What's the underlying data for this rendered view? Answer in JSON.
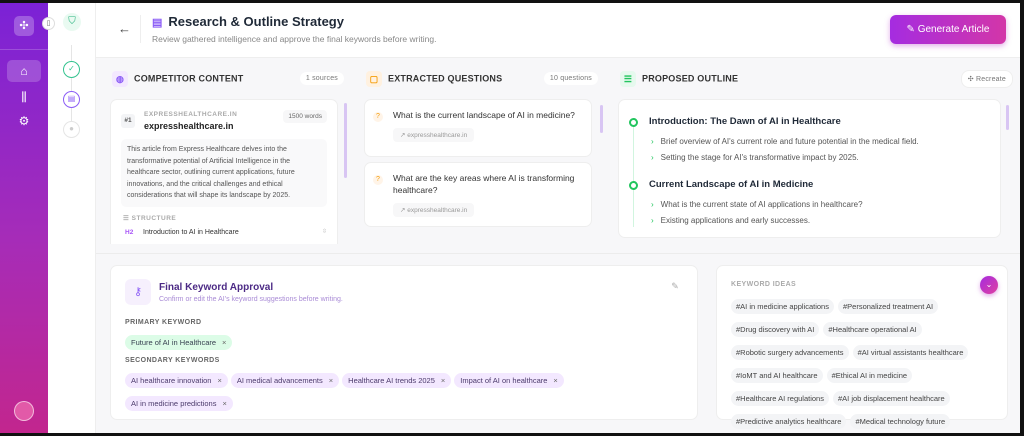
{
  "header": {
    "title": "Research & Outline Strategy",
    "subtitle": "Review gathered intelligence and approve the final keywords before writing.",
    "generate_label": "Generate Article"
  },
  "competitor": {
    "title": "COMPETITOR CONTENT",
    "badge": "1 sources",
    "rank": "#1",
    "domain_caps": "EXPRESSHEALTHCARE.IN",
    "domain": "expresshealthcare.in",
    "words": "1500 words",
    "summary": "This article from Express Healthcare delves into the transformative potential of Artificial Intelligence in the healthcare sector, outlining current applications, future innovations, and the critical challenges and ethical considerations that will shape its landscape by 2025.",
    "structure_label": "STRUCTURE",
    "structure_tag": "H2",
    "structure_item": "Introduction to AI in Healthcare"
  },
  "questions": {
    "title": "EXTRACTED QUESTIONS",
    "badge": "10 questions",
    "items": [
      {
        "q": "What is the current landscape of AI in medicine?",
        "src": "expresshealthcare.in"
      },
      {
        "q": "What are the key areas where AI is transforming healthcare?",
        "src": "expresshealthcare.in"
      }
    ]
  },
  "outline": {
    "title": "PROPOSED OUTLINE",
    "recreate": "Recreate",
    "sections": [
      {
        "h": "Introduction: The Dawn of AI in Healthcare",
        "b": [
          "Brief overview of AI's current role and future potential in the medical field.",
          "Setting the stage for AI's transformative impact by 2025."
        ]
      },
      {
        "h": "Current Landscape of AI in Medicine",
        "b": [
          "What is the current state of AI applications in healthcare?",
          "Existing applications and early successes."
        ]
      }
    ]
  },
  "approval": {
    "title": "Final Keyword Approval",
    "subtitle": "Confirm or edit the AI's keyword suggestions before writing.",
    "primary_label": "PRIMARY KEYWORD",
    "primary": "Future of AI in Healthcare",
    "secondary_label": "SECONDARY KEYWORDS",
    "secondary": [
      "AI healthcare innovation",
      "AI medical advancements",
      "Healthcare AI trends 2025",
      "Impact of AI on healthcare",
      "AI in medicine predictions"
    ]
  },
  "ideas": {
    "title": "KEYWORD IDEAS",
    "items": [
      "#AI in medicine applications",
      "#Personalized treatment AI",
      "#Drug discovery with AI",
      "#Healthcare operational AI",
      "#Robotic surgery advancements",
      "#AI virtual assistants healthcare",
      "#IoMT and AI healthcare",
      "#Ethical AI in medicine",
      "#Healthcare AI regulations",
      "#AI job displacement healthcare",
      "#Predictive analytics healthcare",
      "#Medical technology future"
    ]
  },
  "colors": {
    "accent": "#a52ce0",
    "success": "#22c55e"
  }
}
